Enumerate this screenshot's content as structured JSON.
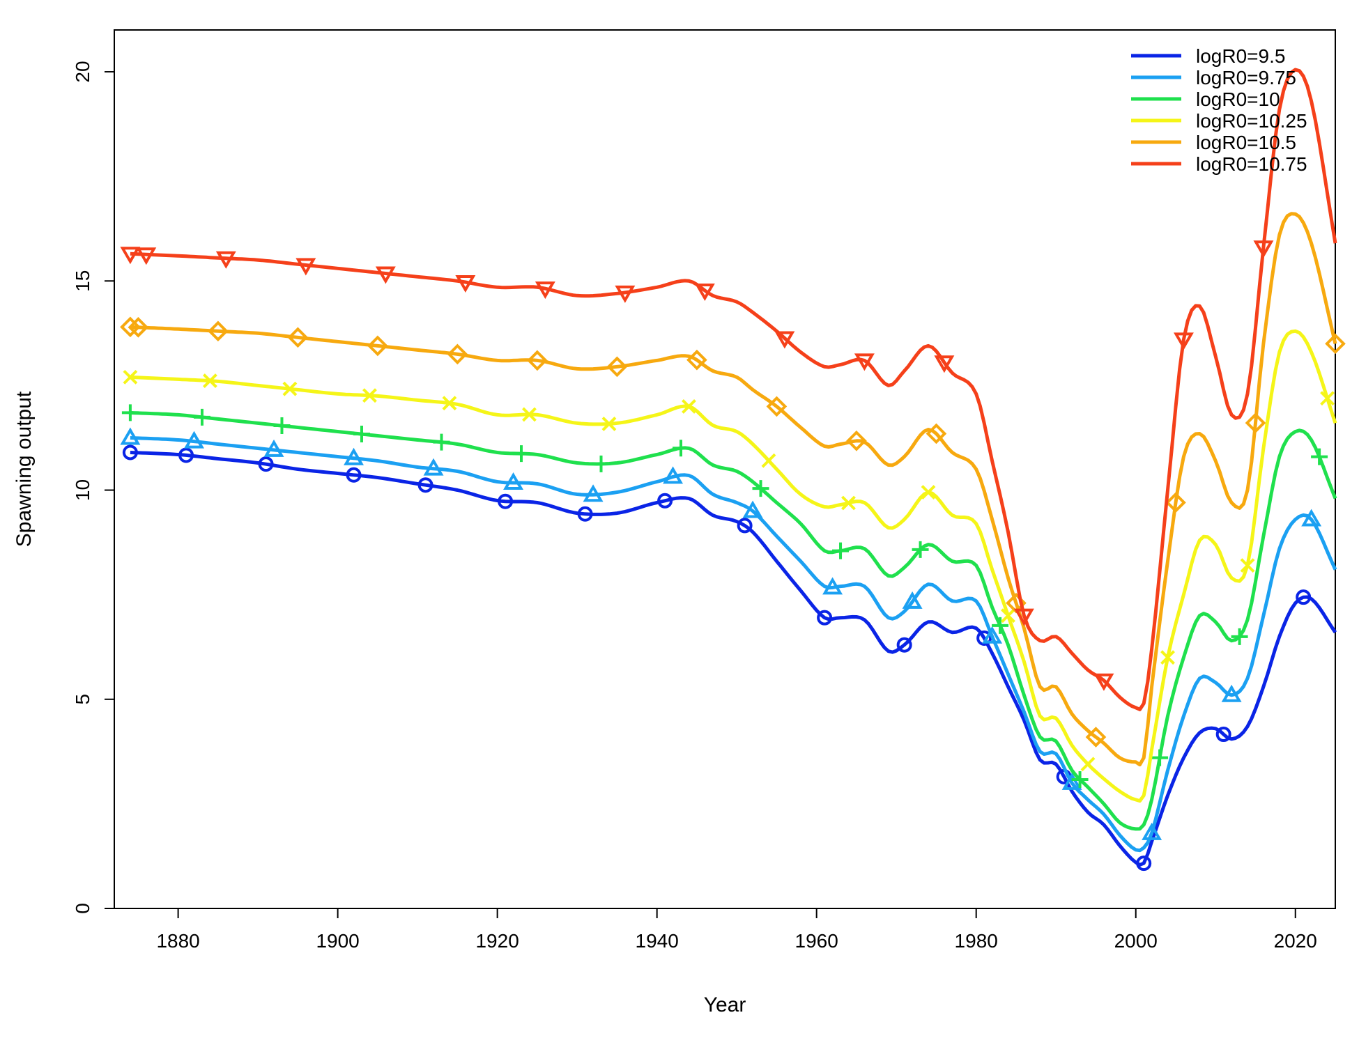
{
  "chart_data": {
    "type": "line",
    "title": "",
    "xlabel": "Year",
    "ylabel": "Spawning output",
    "xlim": [
      1872,
      2025
    ],
    "ylim": [
      0,
      21
    ],
    "xticks": [
      1880,
      1900,
      1920,
      1940,
      1960,
      1980,
      2000,
      2020
    ],
    "yticks": [
      0,
      5,
      10,
      15,
      20
    ],
    "legend_position": "top-right",
    "x": [
      1874,
      1880,
      1885,
      1890,
      1895,
      1900,
      1905,
      1910,
      1915,
      1920,
      1925,
      1930,
      1935,
      1940,
      1944,
      1947,
      1950,
      1952,
      1955,
      1958,
      1961,
      1963,
      1966,
      1969,
      1971,
      1974,
      1977,
      1980,
      1982,
      1984,
      1986,
      1988,
      1990,
      1992,
      1994,
      1996,
      1998,
      2000,
      2001,
      2002,
      2004,
      2006,
      2008,
      2010,
      2012,
      2014,
      2016,
      2018,
      2020,
      2022,
      2025
    ],
    "series": [
      {
        "name": "logR0=9.5",
        "color": "#0a24e6",
        "marker": "circle",
        "marker_x": [
          1874,
          1881,
          1891,
          1902,
          1911,
          1921,
          1931,
          1941,
          1951,
          1961,
          1971,
          1981,
          1991,
          2001,
          2011,
          2021
        ],
        "values": [
          10.9,
          10.85,
          10.75,
          10.65,
          10.5,
          10.4,
          10.3,
          10.15,
          10.0,
          9.75,
          9.7,
          9.45,
          9.45,
          9.7,
          9.8,
          9.4,
          9.25,
          9.0,
          8.3,
          7.6,
          6.95,
          6.95,
          6.9,
          6.15,
          6.3,
          6.85,
          6.6,
          6.7,
          6.1,
          5.3,
          4.5,
          3.55,
          3.45,
          2.8,
          2.3,
          2.0,
          1.5,
          1.1,
          1.08,
          1.6,
          2.7,
          3.6,
          4.2,
          4.3,
          4.05,
          4.35,
          5.3,
          6.5,
          7.3,
          7.4,
          6.6
        ]
      },
      {
        "name": "logR0=9.75",
        "color": "#1ba0f2",
        "marker": "triangle",
        "marker_x": [
          1874,
          1882,
          1892,
          1902,
          1912,
          1922,
          1932,
          1942,
          1952,
          1962,
          1972,
          1982,
          1992,
          2002,
          2012,
          2022
        ],
        "values": [
          11.25,
          11.2,
          11.1,
          11.0,
          10.9,
          10.8,
          10.7,
          10.55,
          10.45,
          10.2,
          10.15,
          9.9,
          9.95,
          10.2,
          10.35,
          9.9,
          9.7,
          9.5,
          8.9,
          8.3,
          7.7,
          7.7,
          7.7,
          6.95,
          7.1,
          7.75,
          7.35,
          7.35,
          6.5,
          5.6,
          4.7,
          3.75,
          3.7,
          3.0,
          2.6,
          2.25,
          1.75,
          1.4,
          1.45,
          1.8,
          3.3,
          4.6,
          5.5,
          5.4,
          5.1,
          5.5,
          7.0,
          8.6,
          9.3,
          9.3,
          8.1
        ]
      },
      {
        "name": "logR0=10",
        "color": "#1fe04d",
        "marker": "plus",
        "marker_x": [
          1874,
          1883,
          1893,
          1903,
          1913,
          1923,
          1933,
          1943,
          1953,
          1963,
          1973,
          1983,
          1993,
          2003,
          2013,
          2023
        ],
        "values": [
          11.85,
          11.8,
          11.7,
          11.6,
          11.5,
          11.4,
          11.3,
          11.2,
          11.1,
          10.9,
          10.85,
          10.65,
          10.65,
          10.85,
          11.0,
          10.6,
          10.45,
          10.2,
          9.7,
          9.2,
          8.55,
          8.55,
          8.6,
          7.95,
          8.15,
          8.7,
          8.3,
          8.2,
          7.2,
          6.3,
          5.1,
          4.1,
          4.0,
          3.3,
          2.9,
          2.5,
          2.05,
          1.9,
          2.0,
          2.6,
          4.6,
          6.0,
          7.0,
          6.85,
          6.4,
          6.9,
          8.9,
          10.8,
          11.4,
          11.2,
          9.8
        ]
      },
      {
        "name": "logR0=10.25",
        "color": "#f5f518",
        "marker": "cross",
        "marker_x": [
          1874,
          1884,
          1894,
          1904,
          1914,
          1924,
          1934,
          1944,
          1954,
          1964,
          1974,
          1984,
          1994,
          2004,
          2014,
          2024
        ],
        "values": [
          12.7,
          12.65,
          12.6,
          12.5,
          12.4,
          12.3,
          12.25,
          12.15,
          12.05,
          11.8,
          11.8,
          11.6,
          11.6,
          11.8,
          12.0,
          11.55,
          11.4,
          11.1,
          10.5,
          9.9,
          9.6,
          9.65,
          9.7,
          9.1,
          9.3,
          9.95,
          9.4,
          9.2,
          8.1,
          7.0,
          5.9,
          4.6,
          4.55,
          3.9,
          3.45,
          3.1,
          2.8,
          2.6,
          2.7,
          3.8,
          6.0,
          7.5,
          8.8,
          8.7,
          7.9,
          8.2,
          11.0,
          13.3,
          13.8,
          13.3,
          11.6
        ]
      },
      {
        "name": "logR0=10.5",
        "color": "#f7a90f",
        "marker": "diamond",
        "marker_x": [
          1874,
          1875,
          1885,
          1895,
          1905,
          1915,
          1925,
          1935,
          1945,
          1955,
          1965,
          1975,
          1985,
          1995,
          2005,
          2015,
          2025
        ],
        "values": [
          13.9,
          13.85,
          13.8,
          13.75,
          13.65,
          13.55,
          13.45,
          13.35,
          13.25,
          13.1,
          13.1,
          12.9,
          12.95,
          13.1,
          13.2,
          12.85,
          12.7,
          12.4,
          12.0,
          11.5,
          11.05,
          11.1,
          11.15,
          10.6,
          10.8,
          11.45,
          10.9,
          10.5,
          9.3,
          7.9,
          6.7,
          5.3,
          5.3,
          4.65,
          4.25,
          3.95,
          3.6,
          3.5,
          3.6,
          5.3,
          8.3,
          10.8,
          11.35,
          10.7,
          9.7,
          10.0,
          13.5,
          16.1,
          16.6,
          15.9,
          13.5
        ]
      },
      {
        "name": "logR0=10.75",
        "color": "#f5401a",
        "marker": "down-triangle",
        "marker_x": [
          1874,
          1876,
          1886,
          1896,
          1906,
          1916,
          1926,
          1936,
          1946,
          1956,
          1966,
          1976,
          1986,
          1996,
          2006,
          2016
        ],
        "values": [
          15.65,
          15.6,
          15.55,
          15.5,
          15.4,
          15.3,
          15.2,
          15.1,
          15.0,
          14.85,
          14.85,
          14.65,
          14.7,
          14.85,
          15.0,
          14.65,
          14.5,
          14.25,
          13.8,
          13.3,
          12.95,
          13.0,
          13.1,
          12.5,
          12.85,
          13.45,
          12.8,
          12.3,
          10.7,
          9.0,
          7.0,
          6.4,
          6.5,
          6.1,
          5.7,
          5.45,
          5.05,
          4.8,
          4.9,
          6.2,
          10.0,
          13.6,
          14.4,
          13.2,
          11.8,
          12.3,
          15.8,
          19.1,
          20.05,
          19.3,
          15.9
        ]
      }
    ]
  }
}
